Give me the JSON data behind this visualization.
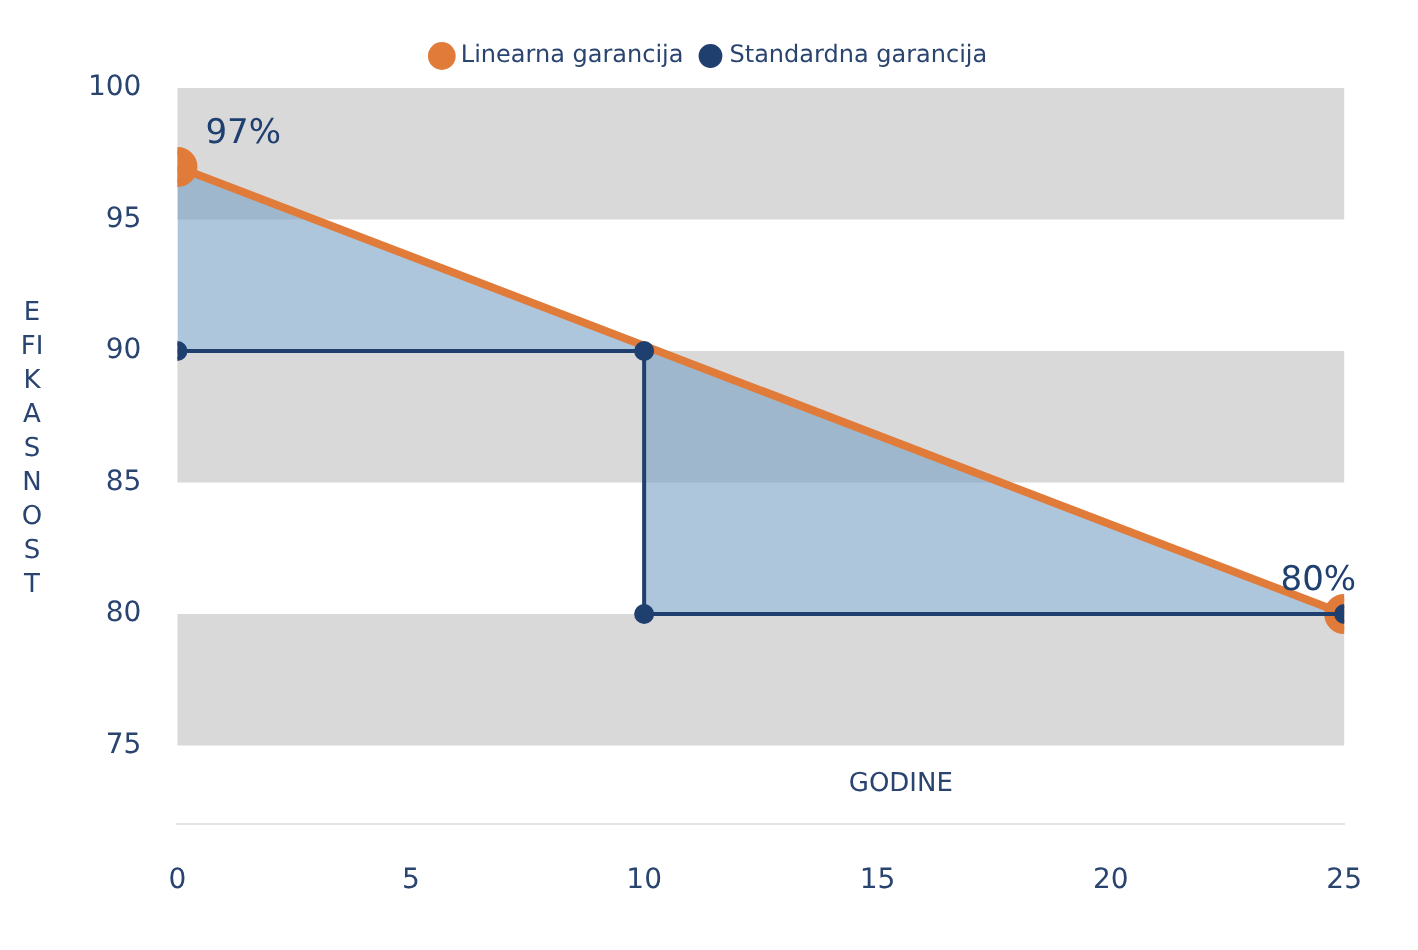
{
  "chart_data": {
    "type": "line",
    "xlabel": "GODINE",
    "ylabel": "EFIKASNOST",
    "series": [
      {
        "name": "Linearna garancija",
        "color": "#e07b3a",
        "x": [
          0,
          25
        ],
        "values": [
          97,
          80
        ],
        "marker": "circle"
      },
      {
        "name": "Standardna garancija",
        "color": "#1f3f6e",
        "x": [
          0,
          10,
          10,
          25
        ],
        "values": [
          90,
          90,
          80,
          80
        ],
        "marker": "circle"
      }
    ],
    "xlim": [
      0,
      25
    ],
    "xticks": [
      0,
      5,
      10,
      15,
      20,
      25
    ],
    "ylim": [
      72,
      100
    ],
    "yticks": [
      75,
      80,
      85,
      90,
      95,
      100
    ],
    "bands": [
      {
        "axis": "y",
        "from": 95,
        "to": 100,
        "color": "#d9d9d9"
      },
      {
        "axis": "y",
        "from": 85,
        "to": 90,
        "color": "#d9d9d9"
      },
      {
        "axis": "y",
        "from": 75,
        "to": 80,
        "color": "#d9d9d9"
      }
    ],
    "annotations": [
      {
        "text": "97%",
        "x": 0,
        "y": 97
      },
      {
        "text": "80%",
        "x": 25,
        "y": 80
      }
    ],
    "legend": "top",
    "grid": false
  }
}
